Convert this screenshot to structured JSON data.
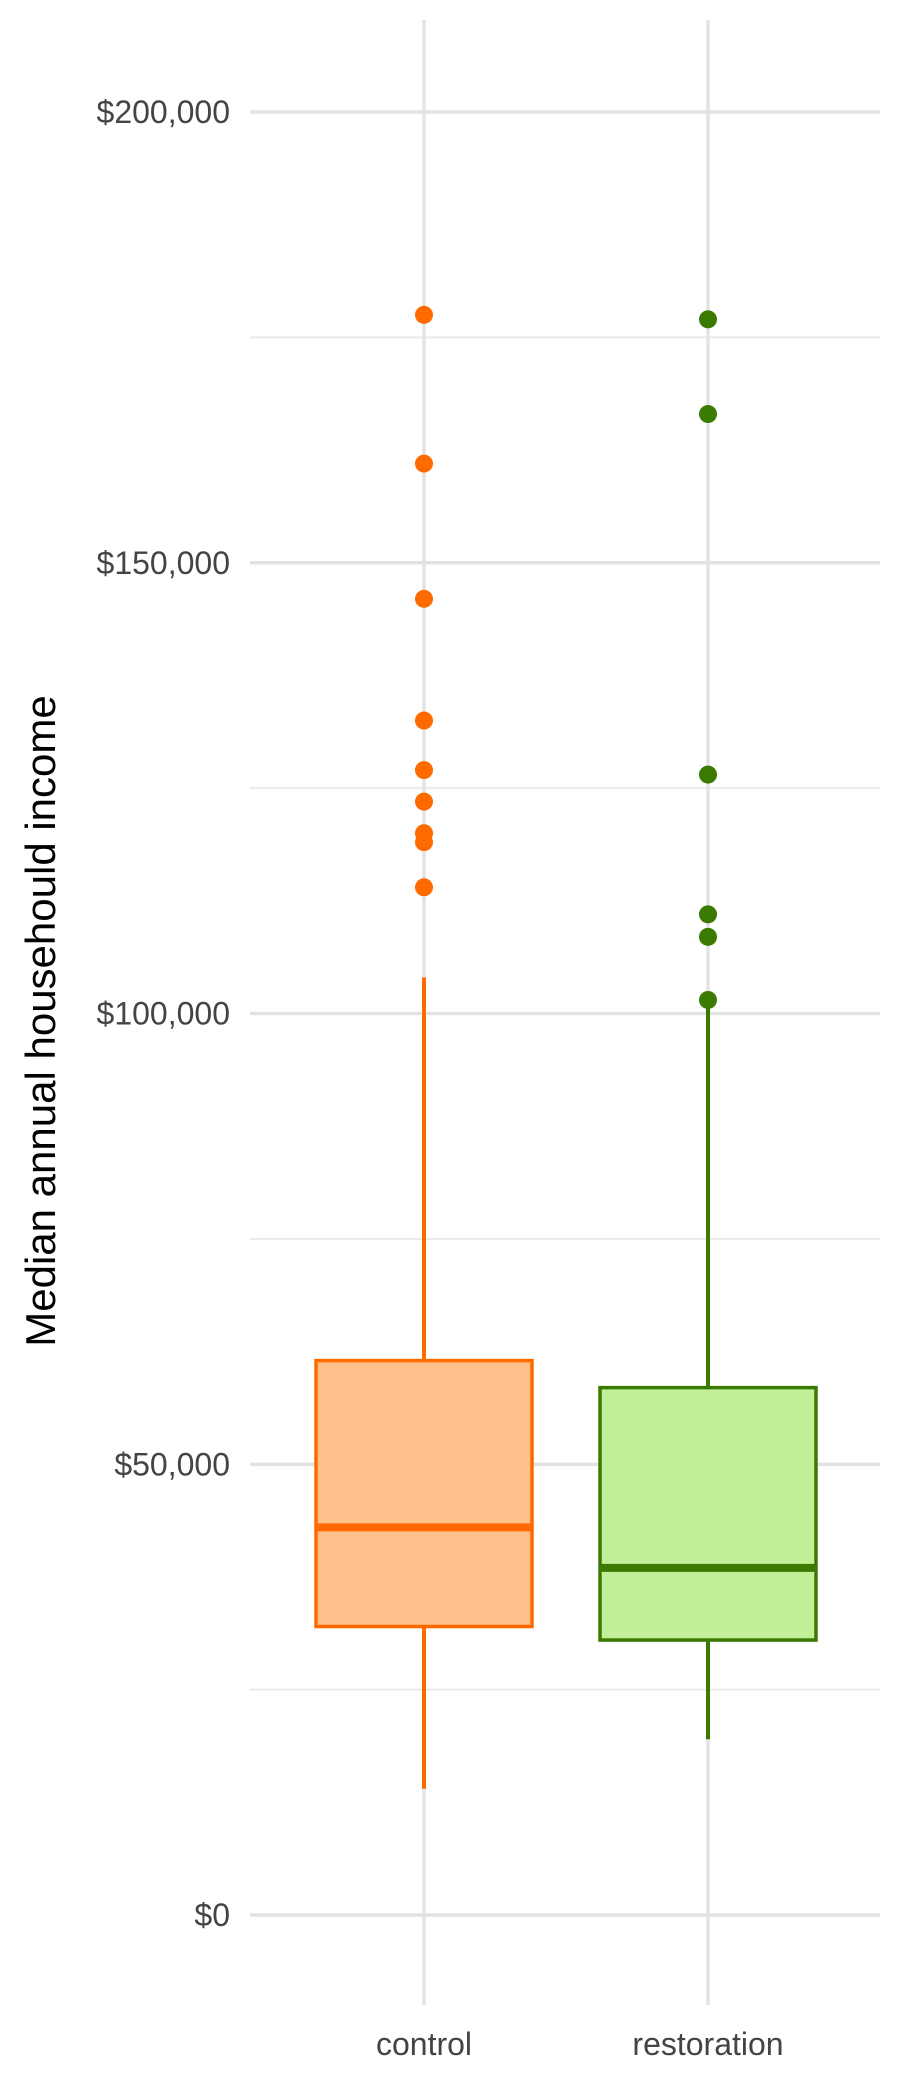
{
  "chart_data": {
    "type": "box",
    "title": "",
    "xlabel": "",
    "ylabel": "Median annual househould income",
    "ylim": [
      -10000,
      210000
    ],
    "y_ticks": [
      {
        "value": 0,
        "label": "$0"
      },
      {
        "value": 50000,
        "label": "$50,000"
      },
      {
        "value": 100000,
        "label": "$100,000"
      },
      {
        "value": 150000,
        "label": "$150,000"
      },
      {
        "value": 200000,
        "label": "$200,000"
      }
    ],
    "y_minor_ticks": [
      25000,
      75000,
      125000,
      175000
    ],
    "grid": true,
    "legend": "none",
    "categories": [
      "control",
      "restoration"
    ],
    "boxes": [
      {
        "category": "control",
        "whisker_low": 14000,
        "q1": 32000,
        "median": 43000,
        "q3": 61500,
        "whisker_high": 104000,
        "outliers": [
          114000,
          119000,
          120000,
          123500,
          127000,
          132500,
          146000,
          161000,
          177500
        ],
        "fill": "#FDC08A",
        "stroke": "#FF6A00"
      },
      {
        "category": "restoration",
        "whisker_low": 19500,
        "q1": 30500,
        "median": 38500,
        "q3": 58500,
        "whisker_high": 101500,
        "outliers": [
          101500,
          108500,
          111000,
          126500,
          166500,
          177000
        ],
        "fill": "#C3EF98",
        "stroke": "#3A7A00"
      }
    ]
  }
}
